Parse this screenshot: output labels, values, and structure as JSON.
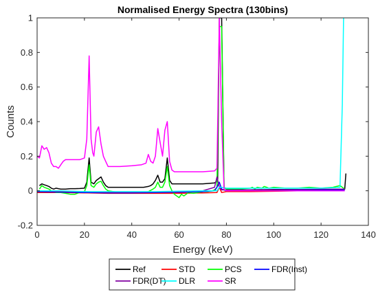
{
  "chart_data": {
    "type": "line",
    "title": "Normalised Energy Spectra (130bins)",
    "xlabel": "Energy (keV)",
    "ylabel": "Counts",
    "xlim": [
      0,
      140
    ],
    "ylim": [
      -0.2,
      1
    ],
    "xticks": [
      0,
      20,
      40,
      60,
      80,
      100,
      120,
      140
    ],
    "yticks": [
      -0.2,
      0,
      0.2,
      0.4,
      0.6,
      0.8,
      1
    ],
    "ytick_labels": [
      "-0.2",
      "0",
      "0.2",
      "0.4",
      "0.6",
      "0.8",
      "1"
    ],
    "grid": false,
    "legend_position": "below",
    "series": [
      {
        "name": "Ref",
        "color": "#000000",
        "points": [
          [
            1,
            0.03
          ],
          [
            2,
            0.04
          ],
          [
            3,
            0.035
          ],
          [
            4,
            0.03
          ],
          [
            5,
            0.025
          ],
          [
            6,
            0.015
          ],
          [
            7,
            0.01
          ],
          [
            8,
            0.015
          ],
          [
            9,
            0.012
          ],
          [
            10,
            0.01
          ],
          [
            12,
            0.01
          ],
          [
            14,
            0.012
          ],
          [
            16,
            0.012
          ],
          [
            18,
            0.013
          ],
          [
            20,
            0.015
          ],
          [
            21,
            0.05
          ],
          [
            22,
            0.19
          ],
          [
            22.8,
            0.05
          ],
          [
            24,
            0.04
          ],
          [
            25,
            0.06
          ],
          [
            26,
            0.07
          ],
          [
            27,
            0.08
          ],
          [
            28,
            0.05
          ],
          [
            29,
            0.03
          ],
          [
            30,
            0.02
          ],
          [
            35,
            0.02
          ],
          [
            40,
            0.02
          ],
          [
            45,
            0.02
          ],
          [
            47,
            0.025
          ],
          [
            48,
            0.03
          ],
          [
            49,
            0.04
          ],
          [
            50,
            0.06
          ],
          [
            51,
            0.09
          ],
          [
            52,
            0.05
          ],
          [
            53,
            0.05
          ],
          [
            54,
            0.07
          ],
          [
            55,
            0.19
          ],
          [
            56,
            0.06
          ],
          [
            57,
            0.04
          ],
          [
            60,
            0.04
          ],
          [
            65,
            0.04
          ],
          [
            70,
            0.04
          ],
          [
            75,
            0.045
          ],
          [
            76.3,
            0.06
          ],
          [
            77,
            1.0
          ],
          [
            78,
            1.0
          ],
          [
            79,
            0.02
          ],
          [
            80,
            0.01
          ],
          [
            85,
            0.005
          ],
          [
            90,
            0.005
          ],
          [
            100,
            0.004
          ],
          [
            110,
            0.003
          ],
          [
            120,
            0.003
          ],
          [
            128,
            0.003
          ],
          [
            130,
            0.01
          ],
          [
            130.5,
            0.1
          ]
        ]
      },
      {
        "name": "STD",
        "color": "#ff0000",
        "points": [
          [
            0,
            -0.01
          ],
          [
            10,
            -0.01
          ],
          [
            20,
            -0.012
          ],
          [
            30,
            -0.015
          ],
          [
            40,
            -0.015
          ],
          [
            50,
            -0.015
          ],
          [
            60,
            -0.015
          ],
          [
            70,
            -0.012
          ],
          [
            76,
            -0.01
          ],
          [
            77,
            0.02
          ],
          [
            78,
            -0.01
          ],
          [
            80,
            -0.005
          ],
          [
            90,
            -0.005
          ],
          [
            100,
            -0.003
          ],
          [
            110,
            0.0
          ],
          [
            120,
            0.0
          ],
          [
            130,
            0.002
          ]
        ]
      },
      {
        "name": "PCS",
        "color": "#00ff00",
        "points": [
          [
            1,
            0.01
          ],
          [
            2,
            0.03
          ],
          [
            3,
            0.02
          ],
          [
            4,
            0.015
          ],
          [
            5,
            0.01
          ],
          [
            6,
            0.0
          ],
          [
            8,
            -0.01
          ],
          [
            10,
            -0.01
          ],
          [
            12,
            -0.015
          ],
          [
            14,
            -0.02
          ],
          [
            16,
            -0.02
          ],
          [
            18,
            -0.01
          ],
          [
            20,
            -0.005
          ],
          [
            21,
            0.03
          ],
          [
            22,
            0.15
          ],
          [
            22.8,
            0.03
          ],
          [
            24,
            0.02
          ],
          [
            25,
            0.04
          ],
          [
            26,
            0.05
          ],
          [
            27,
            0.055
          ],
          [
            28,
            0.03
          ],
          [
            29,
            0.01
          ],
          [
            30,
            0.0
          ],
          [
            35,
            -0.01
          ],
          [
            40,
            -0.01
          ],
          [
            45,
            -0.01
          ],
          [
            47,
            -0.005
          ],
          [
            49,
            0.01
          ],
          [
            50,
            0.02
          ],
          [
            51,
            0.05
          ],
          [
            52,
            0.02
          ],
          [
            53,
            0.02
          ],
          [
            54,
            0.05
          ],
          [
            55,
            0.14
          ],
          [
            56,
            0.03
          ],
          [
            57,
            0.0
          ],
          [
            58,
            -0.02
          ],
          [
            59,
            -0.03
          ],
          [
            60,
            -0.04
          ],
          [
            61,
            -0.02
          ],
          [
            62,
            -0.03
          ],
          [
            63,
            -0.02
          ],
          [
            64,
            -0.01
          ],
          [
            66,
            -0.015
          ],
          [
            68,
            -0.01
          ],
          [
            70,
            -0.005
          ],
          [
            72,
            -0.005
          ],
          [
            74,
            0.0
          ],
          [
            75,
            0.005
          ],
          [
            76,
            0.02
          ],
          [
            77,
            0.95
          ],
          [
            78,
            0.95
          ],
          [
            79,
            0.02
          ],
          [
            80,
            0.01
          ],
          [
            85,
            0.01
          ],
          [
            90,
            0.015
          ],
          [
            91,
            0.02
          ],
          [
            92,
            0.01
          ],
          [
            93,
            0.02
          ],
          [
            95,
            0.015
          ],
          [
            96,
            0.025
          ],
          [
            97,
            0.02
          ],
          [
            98,
            0.015
          ],
          [
            100,
            0.02
          ],
          [
            105,
            0.015
          ],
          [
            110,
            0.015
          ],
          [
            115,
            0.02
          ],
          [
            120,
            0.015
          ],
          [
            125,
            0.02
          ],
          [
            128,
            0.03
          ],
          [
            130,
            0.01
          ]
        ]
      },
      {
        "name": "FDR(Inst)",
        "color": "#0000ff",
        "points": [
          [
            0,
            -0.005
          ],
          [
            10,
            -0.008
          ],
          [
            20,
            -0.01
          ],
          [
            30,
            -0.012
          ],
          [
            40,
            -0.012
          ],
          [
            50,
            -0.01
          ],
          [
            60,
            -0.008
          ],
          [
            70,
            -0.005
          ],
          [
            75,
            0.0
          ],
          [
            76,
            0.02
          ],
          [
            77,
            0.05
          ],
          [
            78,
            0.01
          ],
          [
            80,
            0.0
          ],
          [
            90,
            0.0
          ],
          [
            100,
            0.0
          ],
          [
            110,
            0.002
          ],
          [
            120,
            0.004
          ],
          [
            130,
            0.005
          ]
        ]
      },
      {
        "name": "FDR(DT)",
        "color": "#8000a0",
        "points": [
          [
            0,
            0.0
          ],
          [
            10,
            -0.005
          ],
          [
            20,
            -0.005
          ],
          [
            30,
            -0.008
          ],
          [
            40,
            -0.008
          ],
          [
            50,
            -0.006
          ],
          [
            60,
            -0.004
          ],
          [
            70,
            0.0
          ],
          [
            75,
            0.02
          ],
          [
            76,
            0.08
          ],
          [
            77,
            0.02
          ],
          [
            78,
            0.005
          ],
          [
            80,
            0.005
          ],
          [
            90,
            0.006
          ],
          [
            100,
            0.008
          ],
          [
            110,
            0.008
          ],
          [
            120,
            0.009
          ],
          [
            130,
            0.01
          ]
        ]
      },
      {
        "name": "DLR",
        "color": "#00ffff",
        "points": [
          [
            0,
            0.0
          ],
          [
            10,
            0.0
          ],
          [
            20,
            -0.005
          ],
          [
            30,
            -0.005
          ],
          [
            40,
            -0.005
          ],
          [
            50,
            -0.005
          ],
          [
            60,
            -0.002
          ],
          [
            70,
            0.0
          ],
          [
            76,
            0.0
          ],
          [
            77,
            0.02
          ],
          [
            78,
            0.02
          ],
          [
            80,
            0.015
          ],
          [
            90,
            0.015
          ],
          [
            100,
            0.015
          ],
          [
            110,
            0.015
          ],
          [
            120,
            0.015
          ],
          [
            126,
            0.018
          ],
          [
            128,
            0.02
          ],
          [
            129,
            0.5
          ],
          [
            129.5,
            1.0
          ]
        ]
      },
      {
        "name": "SR",
        "color": "#ff00ff",
        "points": [
          [
            0,
            0.2
          ],
          [
            1,
            0.19
          ],
          [
            2,
            0.26
          ],
          [
            3,
            0.24
          ],
          [
            4,
            0.25
          ],
          [
            5,
            0.22
          ],
          [
            6,
            0.16
          ],
          [
            7,
            0.14
          ],
          [
            8,
            0.14
          ],
          [
            9,
            0.13
          ],
          [
            10,
            0.15
          ],
          [
            11,
            0.17
          ],
          [
            12,
            0.18
          ],
          [
            14,
            0.18
          ],
          [
            16,
            0.18
          ],
          [
            18,
            0.18
          ],
          [
            20,
            0.19
          ],
          [
            21,
            0.3
          ],
          [
            22,
            0.78
          ],
          [
            22.8,
            0.3
          ],
          [
            23.5,
            0.22
          ],
          [
            24,
            0.2
          ],
          [
            25,
            0.34
          ],
          [
            26,
            0.37
          ],
          [
            27,
            0.27
          ],
          [
            28,
            0.2
          ],
          [
            29,
            0.17
          ],
          [
            30,
            0.14
          ],
          [
            35,
            0.14
          ],
          [
            40,
            0.145
          ],
          [
            44,
            0.15
          ],
          [
            46,
            0.16
          ],
          [
            47,
            0.21
          ],
          [
            48,
            0.17
          ],
          [
            49,
            0.16
          ],
          [
            50,
            0.2
          ],
          [
            51,
            0.36
          ],
          [
            52,
            0.28
          ],
          [
            53,
            0.2
          ],
          [
            54,
            0.35
          ],
          [
            55,
            0.4
          ],
          [
            56,
            0.17
          ],
          [
            57,
            0.12
          ],
          [
            58,
            0.11
          ],
          [
            60,
            0.11
          ],
          [
            65,
            0.11
          ],
          [
            70,
            0.11
          ],
          [
            75,
            0.115
          ],
          [
            76,
            0.13
          ],
          [
            77,
            1.0
          ],
          [
            78,
            0.4
          ],
          [
            79,
            0.01
          ],
          [
            80,
            0.0
          ],
          [
            90,
            0.0
          ],
          [
            100,
            0.0
          ],
          [
            110,
            0.0
          ],
          [
            120,
            0.0
          ],
          [
            130,
            0.0
          ]
        ]
      }
    ]
  }
}
